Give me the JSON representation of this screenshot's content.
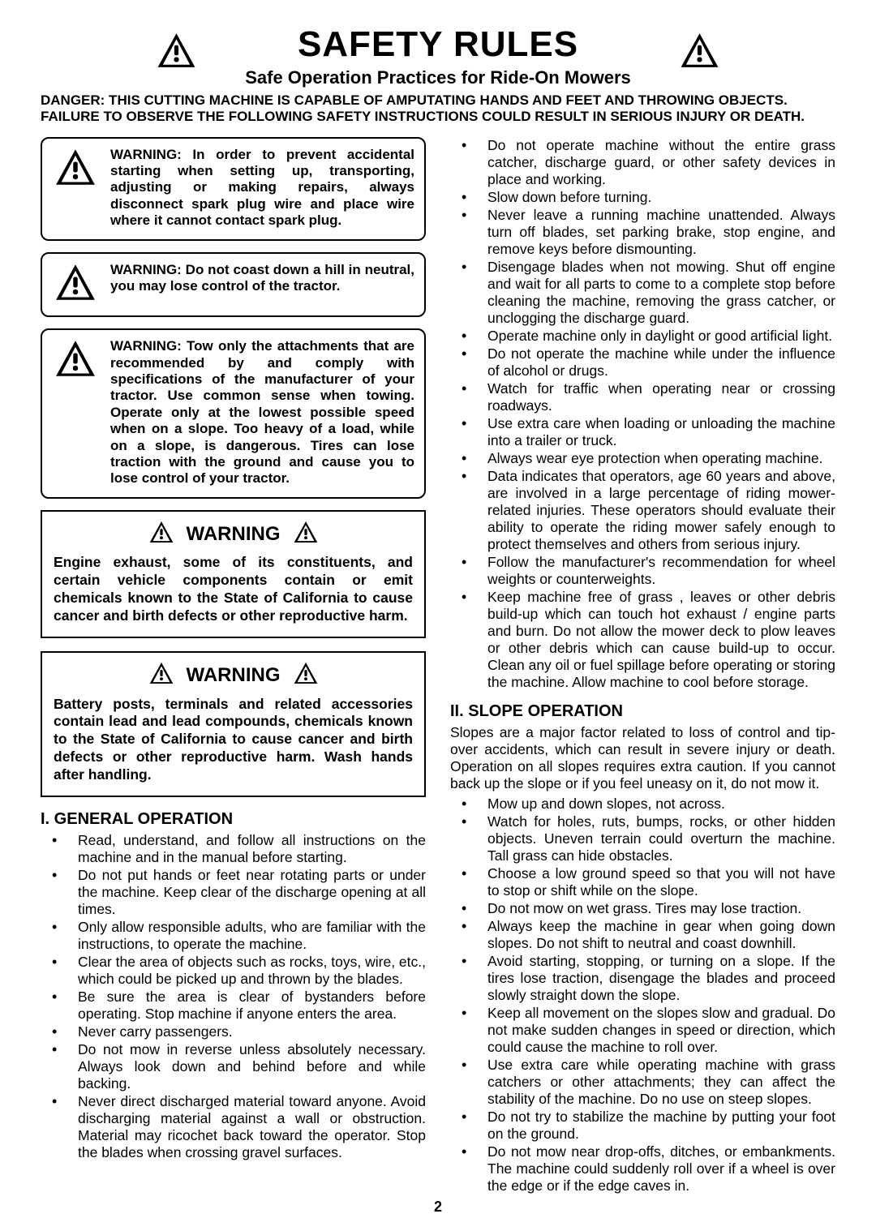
{
  "page_number": "2",
  "header": {
    "title": "SAFETY RULES",
    "subtitle": "Safe Operation Practices for Ride-On Mowers"
  },
  "danger_text": "DANGER:  THIS CUTTING MACHINE IS CAPABLE OF AMPUTATING HANDS AND FEET AND THROWING OBJECTS.  FAILURE TO OBSERVE THE FOLLOWING SAFETY INSTRUCTIONS COULD RESULT IN SERIOUS INJURY OR DEATH.",
  "warning_boxes": [
    "WARNING:  In order to prevent accidental starting when setting up, transporting, adjusting or making repairs, always disconnect spark plug wire and place wire where it cannot contact spark plug.",
    "WARNING:  Do not coast down a hill in neutral, you may lose control of the tractor.",
    "WARNING: Tow only the attachments that are recommended by and comply with specifications of the manufacturer of your tractor. Use common sense when towing. Operate only at the lowest possible speed when on a slope.  Too heavy of a load, while on a slope, is dangerous.  Tires can lose traction with the ground and cause you to lose control of your tractor."
  ],
  "warning_callouts": [
    {
      "label": "WARNING",
      "body": "Engine exhaust, some of its constituents, and certain vehicle components contain or emit chemicals known to the State of California to cause cancer and birth defects or other reproductive harm."
    },
    {
      "label": "WARNING",
      "body": "Battery posts, terminals and related accessories contain lead and lead compounds, chemicals known to the State of California to cause cancer and birth defects or other reproductive harm. Wash hands after handling."
    }
  ],
  "section1": {
    "heading": "I. GENERAL OPERATION",
    "items_left": [
      "Read, understand, and follow all instructions on the machine and in the manual before starting.",
      "Do not put hands or feet near rotating parts or under the machine. Keep clear of the discharge opening at all times.",
      "Only allow responsible adults, who are familiar with the instructions, to operate the machine.",
      "Clear the area of objects such as  rocks, toys, wire, etc., which could be picked up and thrown by the blades.",
      "Be sure the area is clear of bystanders before operating.  Stop machine if anyone enters the area.",
      "Never carry passengers.",
      "Do not mow in reverse unless absolutely necessary. Always look down and behind before and while backing.",
      "Never direct discharged material toward anyone. Avoid discharging material against a wall or obstruction. Material may ricochet back toward the operator. Stop the blades when crossing gravel surfaces."
    ],
    "items_right": [
      "Do not operate machine without the entire grass catcher, discharge guard, or other safety devices in place and working.",
      "Slow down before turning.",
      "Never leave a running machine unattended.  Always turn off blades, set parking brake, stop engine, and remove keys before dismounting.",
      "Disengage blades when not mowing. Shut off engine and wait for all parts to come to a complete stop before cleaning the machine, removing the grass catcher, or unclogging the discharge guard.",
      "Operate machine only in daylight or good artificial light.",
      "Do not operate the machine while under the influence of alcohol or drugs.",
      "Watch for traffic when operating near or crossing roadways.",
      "Use extra care when loading or unloading the machine into a trailer or truck.",
      "Always wear eye protection when operating machine.",
      "Data indicates that operators, age 60 years and above, are involved in a large percentage of riding mower-related injuries.  These operators should evaluate their ability to operate the riding mower safely enough to protect themselves and others from serious injury.",
      "Follow the manufacturer's recommendation for wheel weights or counterweights.",
      "Keep machine free of grass , leaves or other debris build-up which can touch hot exhaust / engine parts and burn. Do not allow the mower deck to plow leaves or other debris which can cause build-up to occur. Clean any oil or fuel spillage before operating or storing the machine. Allow machine to cool before storage."
    ]
  },
  "section2": {
    "heading": "II. SLOPE OPERATION",
    "intro": "Slopes are a major factor related to loss of control and tip-over accidents, which can result in severe injury or death.  Operation on all slopes requires extra caution.  If you cannot back up the slope or if you feel uneasy on it, do not mow it.",
    "items": [
      "Mow up and down slopes, not across.",
      "Watch for holes, ruts, bumps, rocks, or other hidden objects.  Uneven terrain could overturn the machine. Tall grass can hide obstacles.",
      "Choose a low ground speed so that you will not have to stop or shift while on the slope.",
      "Do not mow on wet grass. Tires may lose traction.",
      "Always keep the machine in gear when going down slopes. Do not shift to neutral and coast downhill.",
      "Avoid starting, stopping, or turning on a slope.  If the tires lose traction,  disengage the blades and proceed slowly straight down the slope.",
      "Keep all movement on the slopes slow and gradual. Do not make sudden changes in speed or direction, which could cause the machine to roll over.",
      "Use extra care while operating machine with grass catchers or other attachments; they can affect the stability of the machine. Do no use on steep slopes.",
      "Do not  try to stabilize the machine by putting your foot on the ground.",
      "Do not mow near drop-offs, ditches, or embankments. The machine could suddenly roll over if a wheel is over the edge or if the edge caves in."
    ]
  },
  "icons": {
    "warning_triangle": "warning-triangle-icon"
  },
  "colors": {
    "text": "#000000",
    "background": "#ffffff",
    "border": "#000000"
  }
}
